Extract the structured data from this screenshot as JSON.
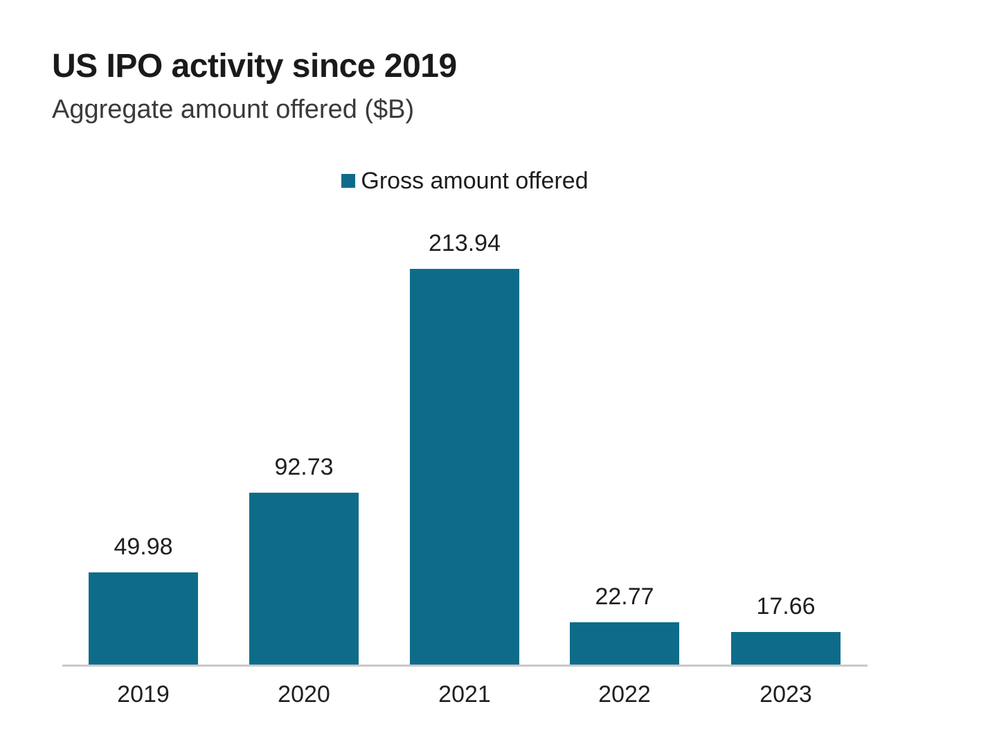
{
  "chart": {
    "title": "US IPO activity since 2019",
    "subtitle": "Aggregate amount offered ($B)",
    "legend": [
      {
        "label": "Gross amount offered",
        "color": "#0e6c8a"
      }
    ]
  },
  "chart_data": {
    "type": "bar",
    "title": "US IPO activity since 2019",
    "subtitle": "Aggregate amount offered ($B)",
    "categories": [
      "2019",
      "2020",
      "2021",
      "2022",
      "2023"
    ],
    "series": [
      {
        "name": "Gross amount offered",
        "values": [
          49.98,
          92.73,
          213.94,
          22.77,
          17.66
        ]
      }
    ],
    "value_labels": [
      "49.98",
      "92.73",
      "213.94",
      "22.77",
      "17.66"
    ],
    "xlabel": "",
    "ylabel": "",
    "ylim": [
      0,
      235.6
    ],
    "grid": false,
    "y_axis_shown": false,
    "legend_position": "top-center",
    "bar_color": "#0e6c8a",
    "axis_line_color": "#c9c9c9",
    "background_color": "#ffffff",
    "text_color": "#1f1f1f"
  }
}
